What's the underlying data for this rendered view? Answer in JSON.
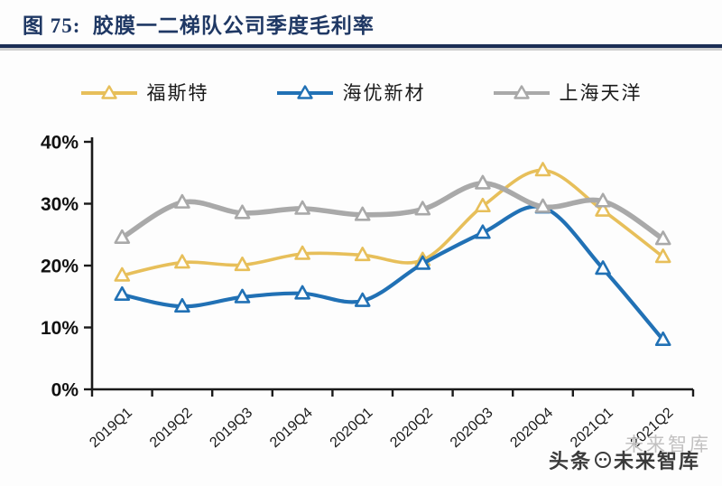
{
  "figure": {
    "title": "图 75:  胶膜一二梯队公司季度毛利率",
    "accent_color": "#1F3864"
  },
  "watermark": {
    "shadow_text": "未来智库",
    "prefix": "头条",
    "logo": "toutiao-circle-logo",
    "suffix": "未来智库"
  },
  "chart_data": {
    "type": "line",
    "title": "胶膜一二梯队公司季度毛利率",
    "categories": [
      "2019Q1",
      "2019Q2",
      "2019Q3",
      "2019Q4",
      "2020Q1",
      "2020Q2",
      "2020Q3",
      "2020Q4",
      "2021Q1",
      "2021Q2"
    ],
    "series": [
      {
        "name": "福斯特",
        "color": "#E7BF5A",
        "line_width": 3.6,
        "values": [
          18.4,
          20.5,
          20.1,
          21.9,
          21.7,
          20.9,
          29.6,
          35.4,
          28.9,
          21.4
        ]
      },
      {
        "name": "海优新材",
        "color": "#2171B5",
        "line_width": 4.2,
        "values": [
          15.3,
          13.4,
          14.9,
          15.5,
          14.3,
          20.3,
          25.3,
          29.4,
          19.5,
          8.0
        ]
      },
      {
        "name": "上海天洋",
        "color": "#A9A9A9",
        "line_width": 5.6,
        "values": [
          24.5,
          30.2,
          28.5,
          29.2,
          28.2,
          29.1,
          33.3,
          29.5,
          30.4,
          24.3
        ]
      }
    ],
    "marker": "triangle-open",
    "ylabel": "",
    "xlabel": "",
    "ylim": [
      0,
      40
    ],
    "ytick_step": 10,
    "ytick_labels": [
      "0%",
      "10%",
      "20%",
      "30%",
      "40%"
    ],
    "grid": false,
    "legend_position": "top",
    "axis_color": "#1a1a1a"
  }
}
